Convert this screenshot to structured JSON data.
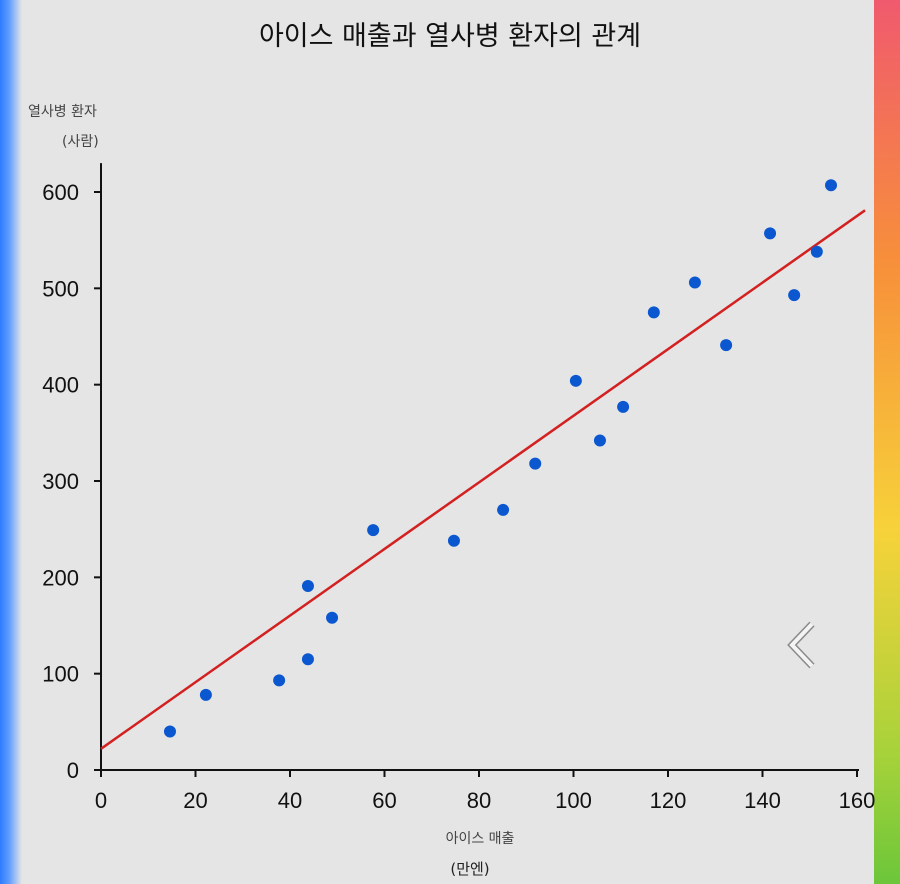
{
  "chart_data": {
    "type": "scatter",
    "title": "아이스 매출과 열사병 환자의 관계",
    "xlabel": "아이스 매출",
    "xunit": "(만엔)",
    "ylabel": "열사병 환자",
    "yunit": "(사람)",
    "xlim": [
      0,
      160
    ],
    "ylim": [
      0,
      630
    ],
    "xticks": [
      0,
      20,
      40,
      60,
      80,
      100,
      120,
      140,
      160
    ],
    "yticks": [
      0,
      100,
      200,
      300,
      400,
      500,
      600
    ],
    "grid": false,
    "point_color": "#0b57d0",
    "trend_color": "#d32020",
    "points": [
      [
        14.6,
        40
      ],
      [
        22.2,
        78
      ],
      [
        37.7,
        93
      ],
      [
        43.8,
        191
      ],
      [
        43.8,
        115
      ],
      [
        48.9,
        158
      ],
      [
        57.6,
        249
      ],
      [
        74.7,
        238
      ],
      [
        85.1,
        270
      ],
      [
        91.9,
        318
      ],
      [
        100.5,
        404
      ],
      [
        105.6,
        342
      ],
      [
        110.5,
        377
      ],
      [
        117,
        475
      ],
      [
        125.7,
        506
      ],
      [
        132.3,
        441
      ],
      [
        141.6,
        557
      ],
      [
        146.7,
        493
      ],
      [
        151.5,
        538
      ],
      [
        154.5,
        607
      ]
    ],
    "trendline": {
      "x": [
        0,
        161.7
      ],
      "y": [
        22,
        581
      ]
    }
  },
  "ui": {
    "back_icon": "chevron-left-icon"
  }
}
